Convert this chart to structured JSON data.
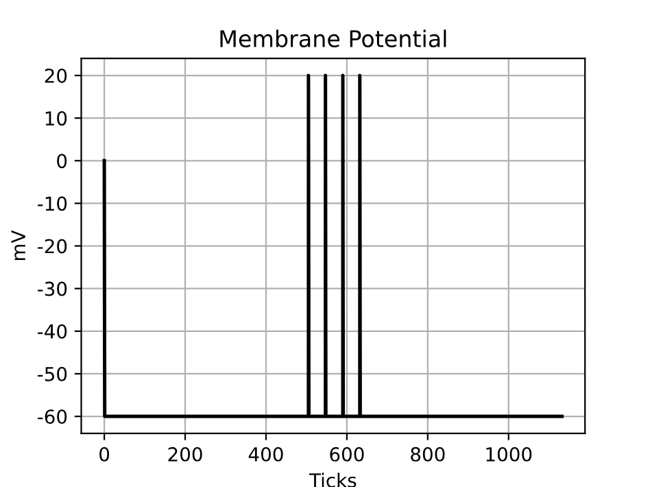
{
  "chart_data": {
    "type": "line",
    "title": "Membrane Potential",
    "xlabel": "Ticks",
    "ylabel": "mV",
    "x": [
      0,
      1,
      505,
      505,
      506,
      547,
      547,
      548,
      590,
      590,
      591,
      632,
      632,
      633,
      1132
    ],
    "series": [
      {
        "color": "#000000",
        "values": [
          0,
          -60,
          -60,
          20,
          -60,
          -60,
          20,
          -60,
          -60,
          20,
          -60,
          -60,
          20,
          -60,
          -60
        ]
      }
    ],
    "xlim": [
      -57,
      1189
    ],
    "ylim": [
      -64,
      24
    ],
    "xticks": [
      0,
      200,
      400,
      600,
      800,
      1000
    ],
    "yticks": [
      -60,
      -50,
      -40,
      -30,
      -20,
      -10,
      0,
      10,
      20
    ],
    "grid": true
  }
}
